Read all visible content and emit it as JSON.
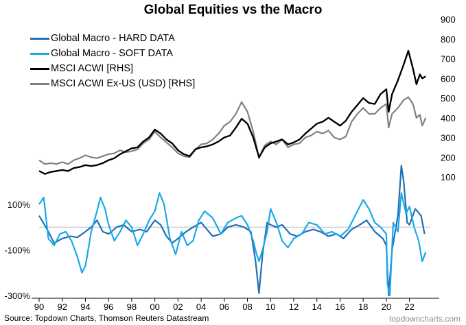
{
  "chart_data": [
    {
      "type": "line",
      "title": "Global Equities vs the Macro",
      "y_axis": "right",
      "ylim": [
        0,
        900
      ],
      "yticks": [
        100,
        200,
        300,
        400,
        500,
        600,
        700,
        800,
        900
      ],
      "series": [
        {
          "name": "MSCI ACWI [RHS]",
          "color": "#000000",
          "x": [
            1990.0,
            1990.5,
            1991.0,
            1991.5,
            1992.0,
            1992.5,
            1993.0,
            1993.5,
            1994.0,
            1994.5,
            1995.0,
            1995.5,
            1996.0,
            1996.5,
            1997.0,
            1997.5,
            1998.0,
            1998.5,
            1999.0,
            1999.5,
            2000.0,
            2000.5,
            2001.0,
            2001.5,
            2002.0,
            2002.5,
            2003.0,
            2003.5,
            2004.0,
            2004.5,
            2005.0,
            2005.5,
            2006.0,
            2006.5,
            2007.0,
            2007.5,
            2008.0,
            2008.5,
            2009.0,
            2009.5,
            2010.0,
            2010.5,
            2011.0,
            2011.5,
            2012.0,
            2012.5,
            2013.0,
            2013.5,
            2014.0,
            2014.5,
            2015.0,
            2015.5,
            2016.0,
            2016.5,
            2017.0,
            2017.5,
            2018.0,
            2018.5,
            2019.0,
            2019.5,
            2020.0,
            2020.2,
            2020.5,
            2021.0,
            2021.5,
            2021.9,
            2022.3,
            2022.6,
            2022.9,
            2023.1,
            2023.4
          ],
          "values": [
            130,
            115,
            125,
            130,
            135,
            130,
            145,
            150,
            160,
            155,
            160,
            170,
            185,
            195,
            215,
            230,
            245,
            250,
            280,
            300,
            340,
            320,
            290,
            270,
            235,
            215,
            205,
            240,
            250,
            255,
            265,
            280,
            300,
            310,
            350,
            395,
            370,
            300,
            200,
            250,
            270,
            280,
            290,
            265,
            275,
            290,
            320,
            345,
            370,
            380,
            400,
            380,
            360,
            385,
            430,
            465,
            500,
            475,
            470,
            520,
            545,
            430,
            520,
            590,
            670,
            740,
            650,
            570,
            620,
            600,
            610
          ]
        },
        {
          "name": "MSCI ACWI Ex-US (USD) [RHS]",
          "color": "#808080",
          "x": [
            1990.0,
            1990.5,
            1991.0,
            1991.5,
            1992.0,
            1992.5,
            1993.0,
            1993.5,
            1994.0,
            1994.5,
            1995.0,
            1995.5,
            1996.0,
            1996.5,
            1997.0,
            1997.5,
            1998.0,
            1998.5,
            1999.0,
            1999.5,
            2000.0,
            2000.5,
            2001.0,
            2001.5,
            2002.0,
            2002.5,
            2003.0,
            2003.5,
            2004.0,
            2004.5,
            2005.0,
            2005.5,
            2006.0,
            2006.5,
            2007.0,
            2007.5,
            2008.0,
            2008.5,
            2009.0,
            2009.5,
            2010.0,
            2010.5,
            2011.0,
            2011.5,
            2012.0,
            2012.5,
            2013.0,
            2013.5,
            2014.0,
            2014.5,
            2015.0,
            2015.5,
            2016.0,
            2016.5,
            2017.0,
            2017.5,
            2018.0,
            2018.5,
            2019.0,
            2019.5,
            2020.0,
            2020.2,
            2020.5,
            2021.0,
            2021.5,
            2021.9,
            2022.3,
            2022.6,
            2022.9,
            2023.1,
            2023.4
          ],
          "values": [
            185,
            165,
            170,
            165,
            175,
            165,
            185,
            195,
            210,
            200,
            195,
            205,
            215,
            220,
            235,
            225,
            230,
            240,
            270,
            290,
            330,
            300,
            275,
            250,
            220,
            205,
            200,
            240,
            265,
            270,
            290,
            320,
            360,
            380,
            420,
            480,
            430,
            330,
            195,
            260,
            280,
            265,
            290,
            250,
            265,
            270,
            300,
            310,
            330,
            320,
            335,
            300,
            290,
            305,
            380,
            420,
            450,
            420,
            420,
            450,
            470,
            350,
            420,
            450,
            490,
            505,
            470,
            400,
            415,
            360,
            400
          ]
        }
      ]
    },
    {
      "type": "line",
      "ylim": [
        -300,
        150
      ],
      "yticks": [
        100,
        -100,
        -300
      ],
      "ytick_labels": [
        "100%",
        "-100%",
        "-300%"
      ],
      "xlim": [
        1990,
        2023.8
      ],
      "xticks": [
        "90",
        "92",
        "94",
        "96",
        "98",
        "00",
        "02",
        "04",
        "06",
        "08",
        "10",
        "12",
        "14",
        "16",
        "18",
        "20",
        "22"
      ],
      "series": [
        {
          "name": "Global Macro - HARD DATA",
          "color": "#1f6fb5",
          "x": [
            1990.0,
            1990.7,
            1991.3,
            1992.0,
            1992.7,
            1993.3,
            1994.0,
            1994.5,
            1995.0,
            1995.5,
            1996.0,
            1996.7,
            1997.3,
            1998.0,
            1998.7,
            1999.3,
            2000.0,
            2000.5,
            2001.0,
            2001.5,
            2002.0,
            2002.7,
            2003.3,
            2004.0,
            2004.5,
            2005.0,
            2005.7,
            2006.3,
            2007.0,
            2007.7,
            2008.3,
            2008.7,
            2009.0,
            2009.3,
            2009.7,
            2010.0,
            2010.5,
            2011.0,
            2011.7,
            2012.3,
            2013.0,
            2013.7,
            2014.3,
            2015.0,
            2015.7,
            2016.3,
            2017.0,
            2017.7,
            2018.3,
            2019.0,
            2019.7,
            2020.0,
            2020.2,
            2020.5,
            2021.0,
            2021.3,
            2021.5,
            2021.8,
            2022.0,
            2022.5,
            2023.0,
            2023.3
          ],
          "values": [
            50,
            -10,
            -70,
            -50,
            -40,
            -45,
            -20,
            0,
            30,
            -20,
            -30,
            0,
            10,
            -20,
            -10,
            -20,
            30,
            10,
            -40,
            -70,
            -50,
            -20,
            0,
            20,
            -10,
            -40,
            -30,
            0,
            10,
            0,
            -20,
            -150,
            -290,
            -120,
            20,
            10,
            0,
            10,
            -30,
            -40,
            -20,
            -10,
            -20,
            -40,
            -30,
            -50,
            -10,
            10,
            30,
            -20,
            -50,
            -80,
            -300,
            -100,
            50,
            270,
            200,
            20,
            10,
            80,
            50,
            -30
          ]
        },
        {
          "name": "Global Macro - SOFT DATA",
          "color": "#18a9e8",
          "x": [
            1990.0,
            1990.4,
            1990.8,
            1991.3,
            1991.8,
            1992.3,
            1992.8,
            1993.3,
            1993.7,
            1994.0,
            1994.5,
            1995.0,
            1995.3,
            1995.7,
            1996.0,
            1996.5,
            1997.0,
            1997.5,
            1998.0,
            1998.5,
            1999.0,
            1999.5,
            2000.0,
            2000.4,
            2000.8,
            2001.3,
            2001.8,
            2002.3,
            2002.8,
            2003.3,
            2003.8,
            2004.3,
            2005.0,
            2005.7,
            2006.3,
            2007.0,
            2007.5,
            2008.0,
            2008.5,
            2008.8,
            2009.0,
            2009.3,
            2009.7,
            2010.0,
            2010.5,
            2011.0,
            2011.5,
            2012.0,
            2012.7,
            2013.3,
            2014.0,
            2014.7,
            2015.3,
            2016.0,
            2016.7,
            2017.3,
            2018.0,
            2018.5,
            2019.0,
            2019.5,
            2020.0,
            2020.1,
            2020.3,
            2020.6,
            2021.0,
            2021.3,
            2021.7,
            2022.0,
            2022.4,
            2022.8,
            2023.1,
            2023.4
          ],
          "values": [
            100,
            130,
            -50,
            -80,
            -30,
            -20,
            -60,
            -130,
            -200,
            -170,
            -20,
            70,
            130,
            80,
            10,
            -60,
            -20,
            30,
            0,
            -80,
            -30,
            30,
            70,
            150,
            100,
            -50,
            -120,
            -20,
            -80,
            -60,
            30,
            70,
            40,
            -30,
            20,
            40,
            50,
            10,
            -60,
            -120,
            -150,
            -100,
            -20,
            80,
            20,
            -60,
            -90,
            -50,
            -30,
            20,
            10,
            -30,
            -20,
            -40,
            -10,
            50,
            120,
            80,
            20,
            0,
            -30,
            -250,
            -300,
            20,
            -20,
            150,
            60,
            90,
            0,
            -60,
            -150,
            -110
          ]
        }
      ]
    }
  ],
  "title": "Global Equities vs the Macro",
  "legend": [
    {
      "label": "Global Macro - HARD DATA",
      "color": "#1f6fb5"
    },
    {
      "label": "Global Macro - SOFT DATA",
      "color": "#18a9e8"
    },
    {
      "label": "MSCI ACWI [RHS]",
      "color": "#000000"
    },
    {
      "label": "MSCI ACWI Ex-US (USD) [RHS]",
      "color": "#808080"
    }
  ],
  "source": "Source: Topdown Charts, Thomson Reuters Datastream",
  "watermark": "topdowncharts.com"
}
